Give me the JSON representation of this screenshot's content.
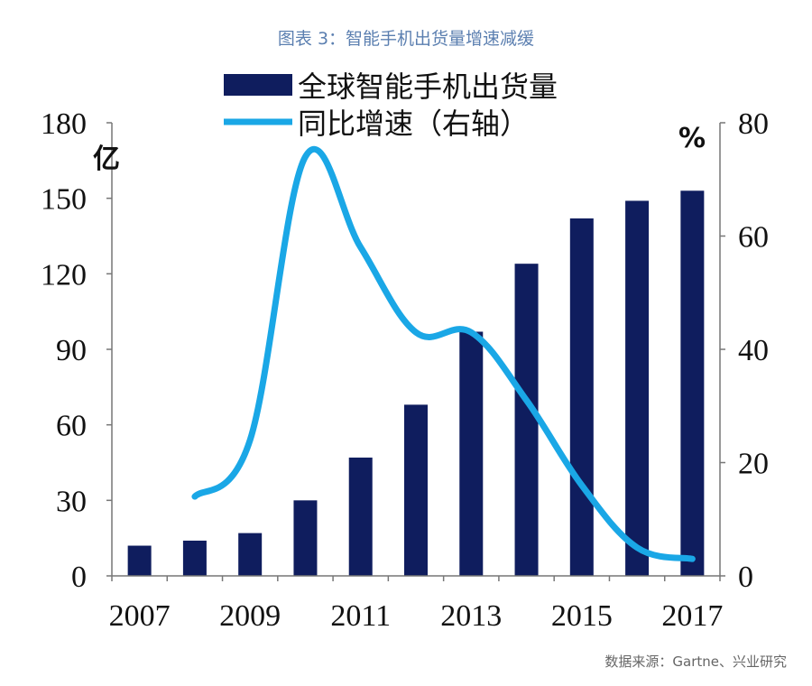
{
  "title": "图表 3：智能手机出货量增速减缓",
  "source": "数据来源：Gartne、兴业研究",
  "chart_data": {
    "type": "bar",
    "categories": [
      "2007",
      "2008",
      "2009",
      "2010",
      "2011",
      "2012",
      "2013",
      "2014",
      "2015",
      "2016",
      "2017"
    ],
    "series": [
      {
        "name": "全球智能手机出货量",
        "type": "bar",
        "axis": "left",
        "color": "#0f1d5e",
        "values": [
          12,
          14,
          17,
          30,
          47,
          68,
          97,
          124,
          142,
          149,
          153
        ]
      },
      {
        "name": "同比增速（右轴）",
        "type": "line",
        "axis": "right",
        "color": "#1aa7e6",
        "values": [
          null,
          14,
          24,
          74,
          58,
          43,
          43,
          31,
          16,
          5,
          3
        ]
      }
    ],
    "left_axis": {
      "unit": "亿",
      "ylim": [
        0,
        180
      ],
      "ticks": [
        "0",
        "30",
        "60",
        "90",
        "120",
        "150",
        "180"
      ]
    },
    "right_axis": {
      "unit": "%",
      "ylim": [
        0,
        80
      ],
      "ticks": [
        "0",
        "20",
        "40",
        "60",
        "80"
      ]
    },
    "x_tick_labels": [
      "2007",
      "2009",
      "2011",
      "2013",
      "2015",
      "2017"
    ],
    "grid": false,
    "legend_position": "top"
  }
}
